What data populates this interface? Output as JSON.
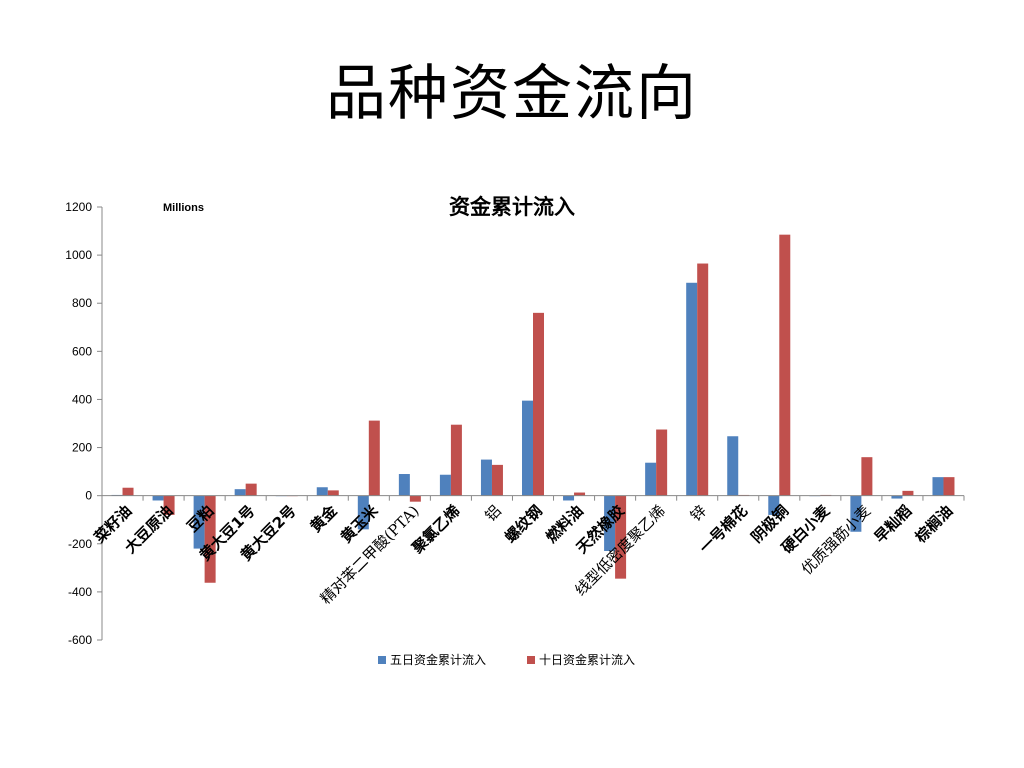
{
  "slide": {
    "title": "品种资金流向"
  },
  "colors": {
    "series1": "#4F81BD",
    "series2": "#C0504D",
    "axis": "#888888"
  },
  "chart_data": {
    "type": "bar",
    "title": "资金累计流入",
    "unit_label": "Millions",
    "xlabel": "",
    "ylabel": "",
    "ylim": [
      -600,
      1200
    ],
    "yticks": [
      -600,
      -400,
      -200,
      0,
      200,
      400,
      600,
      800,
      1000,
      1200
    ],
    "grid": false,
    "legend_position": "bottom",
    "categories": [
      "菜籽油",
      "大豆原油",
      "豆粕",
      "黄大豆1号",
      "黄大豆2号",
      "黄金",
      "黄玉米",
      "精对苯二甲酸(PTA)",
      "聚氯乙烯",
      "铝",
      "螺纹钢",
      "燃料油",
      "天然橡胶",
      "线型低密度聚乙烯",
      "锌",
      "一号棉花",
      "阴极铜",
      "硬白小麦",
      "优质强筋小麦",
      "早籼稻",
      "棕榈油"
    ],
    "category_styles": [
      "bold",
      "bold",
      "bold",
      "bold",
      "bold",
      "bold",
      "bold",
      "serif",
      "bold",
      "serif",
      "bold",
      "bold",
      "bold",
      "serif",
      "serif",
      "bold",
      "bold",
      "bold",
      "serif",
      "bold",
      "bold"
    ],
    "series": [
      {
        "name": "五日资金累计流入",
        "values": [
          3,
          -20,
          -220,
          27,
          0,
          35,
          -140,
          90,
          87,
          150,
          395,
          -20,
          -230,
          137,
          885,
          247,
          -80,
          0,
          -150,
          -12,
          77
        ]
      },
      {
        "name": "十日资金累计流入",
        "values": [
          33,
          -80,
          -362,
          50,
          0,
          22,
          312,
          -25,
          295,
          128,
          760,
          13,
          -345,
          275,
          965,
          3,
          1085,
          3,
          160,
          20,
          77
        ]
      }
    ]
  }
}
